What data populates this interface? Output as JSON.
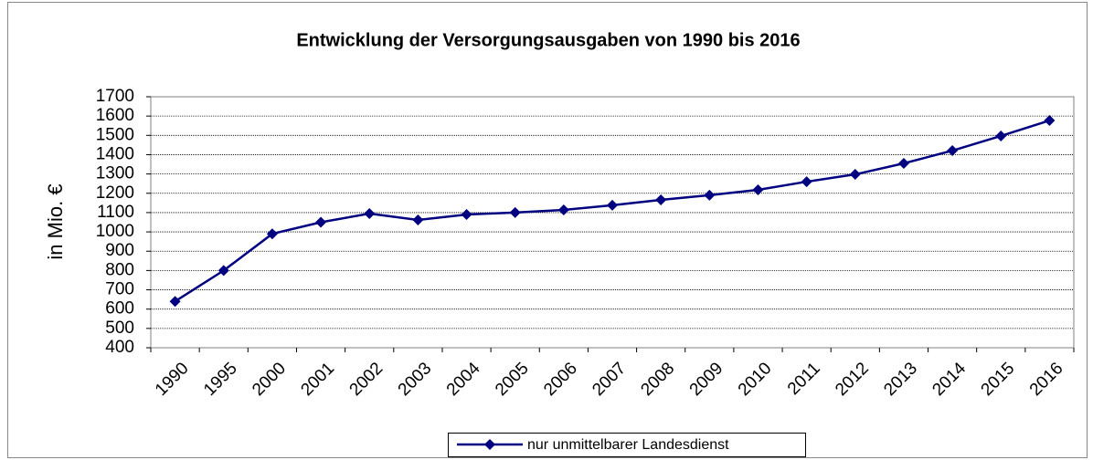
{
  "chart_data": {
    "type": "line",
    "title": "Entwicklung der Versorgungsausgaben von 1990 bis 2016",
    "y_label": "in Mio. €",
    "categories": [
      "1990",
      "1995",
      "2000",
      "2001",
      "2002",
      "2003",
      "2004",
      "2005",
      "2006",
      "2007",
      "2008",
      "2009",
      "2010",
      "2011",
      "2012",
      "2013",
      "2014",
      "2015",
      "2016"
    ],
    "series": [
      {
        "name": "nur unmittelbarer Landesdienst",
        "color": "#000080",
        "values": [
          640,
          800,
          990,
          1050,
          1095,
          1062,
          1090,
          1100,
          1114,
          1138,
          1166,
          1190,
          1218,
          1260,
          1298,
          1355,
          1421,
          1497,
          1577
        ]
      }
    ],
    "ylim": [
      400,
      1700
    ],
    "yticks": [
      400,
      500,
      600,
      700,
      800,
      900,
      1000,
      1100,
      1200,
      1300,
      1400,
      1500,
      1600,
      1700
    ],
    "grid": true,
    "legend": "bottom"
  }
}
